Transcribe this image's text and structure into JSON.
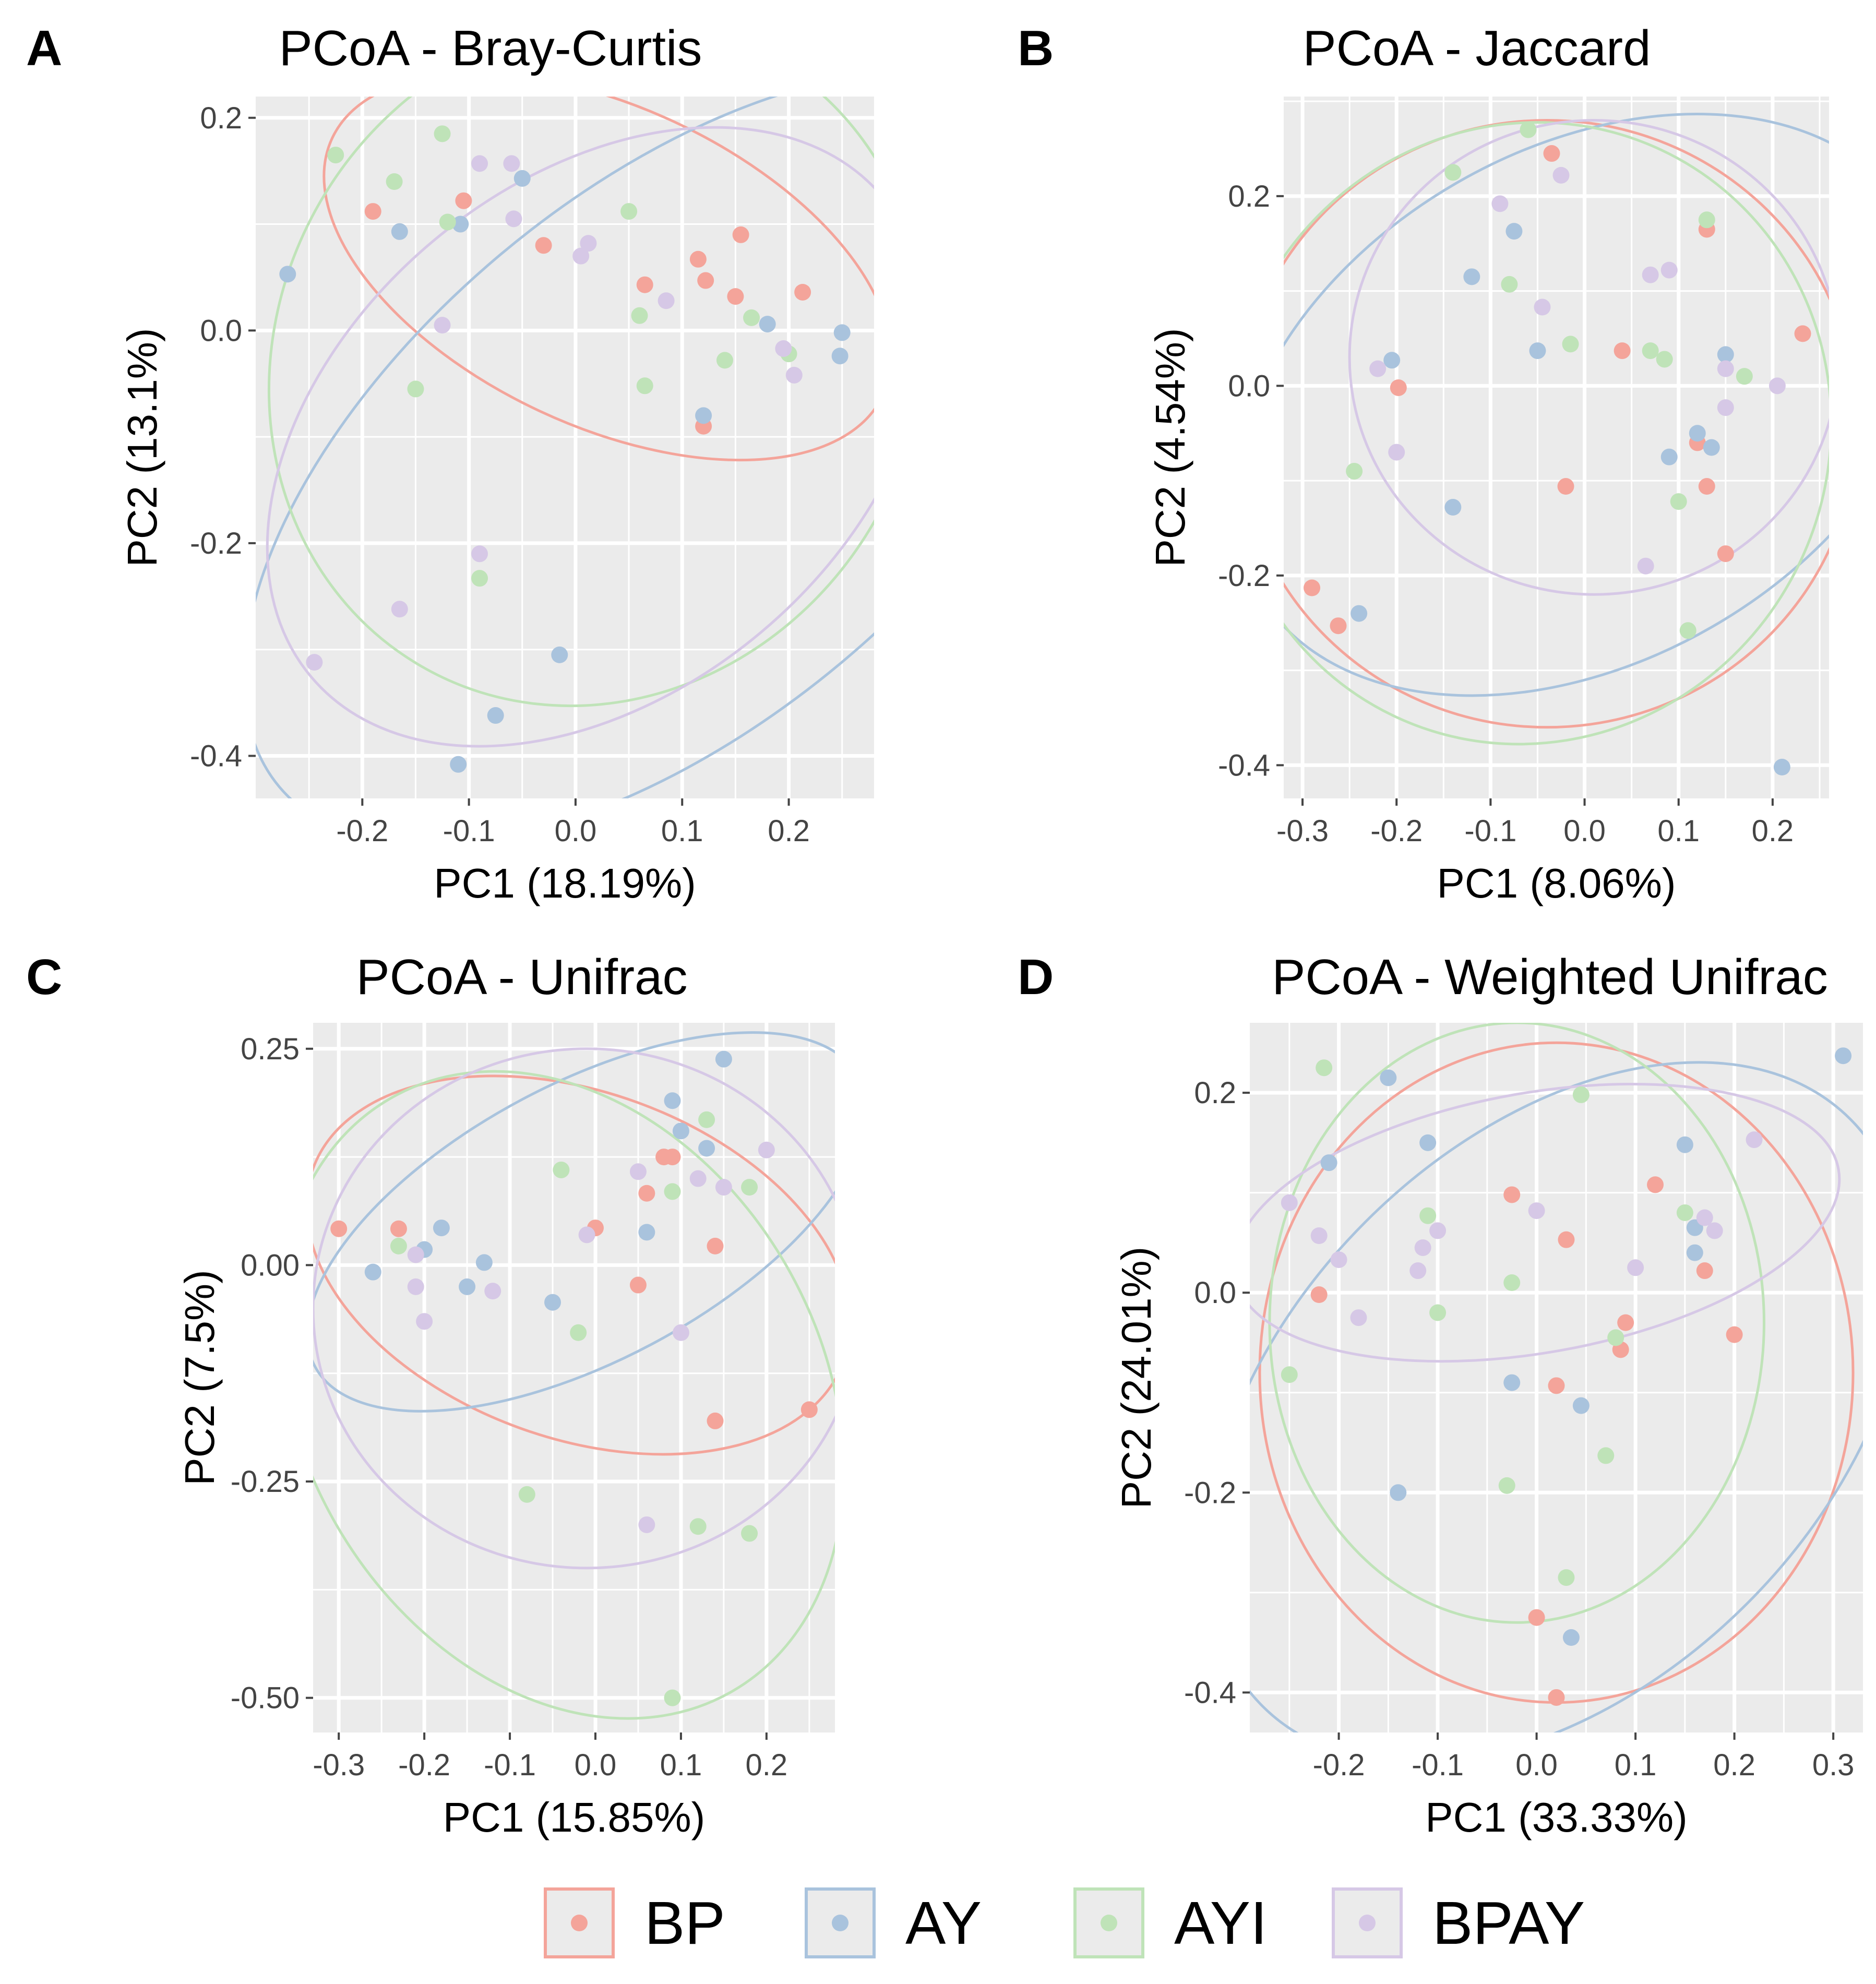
{
  "legend": {
    "items": [
      {
        "label": "BP",
        "color": "#f4a49a"
      },
      {
        "label": "AY",
        "color": "#a9c3dd"
      },
      {
        "label": "AYI",
        "color": "#bfe3b8"
      },
      {
        "label": "BPAY",
        "color": "#d6c8e6"
      }
    ]
  },
  "chart_data": [
    {
      "type": "scatter",
      "panel": "A",
      "title": "PCoA - Bray-Curtis",
      "xlabel": "PC1 (18.19%)",
      "ylabel": "PC2 (13.1%)",
      "xlim": [
        -0.3,
        0.28
      ],
      "ylim": [
        -0.44,
        0.22
      ],
      "xticks": [
        -0.2,
        -0.1,
        0.0,
        0.1,
        0.2
      ],
      "xtick_labels": [
        "-0.2",
        "-0.1",
        "0.0",
        "0.1",
        "0.2"
      ],
      "yticks": [
        -0.4,
        -0.2,
        0.0,
        0.2
      ],
      "ytick_labels": [
        "-0.4",
        "-0.2",
        "0.0",
        "0.2"
      ],
      "grid": true,
      "series": [
        {
          "name": "BP",
          "color": "#f4a49a",
          "points": [
            [
              -0.19,
              0.112
            ],
            [
              -0.105,
              0.122
            ],
            [
              -0.03,
              0.08
            ],
            [
              0.065,
              0.043
            ],
            [
              0.115,
              0.067
            ],
            [
              0.122,
              0.047
            ],
            [
              0.155,
              0.09
            ],
            [
              0.15,
              0.032
            ],
            [
              0.213,
              0.036
            ],
            [
              0.12,
              -0.09
            ]
          ],
          "ellipse": {
            "cx": 0.03,
            "cy": 0.06,
            "rx": 0.285,
            "ry": 0.15,
            "angle_deg": -25
          }
        },
        {
          "name": "AY",
          "color": "#a9c3dd",
          "points": [
            [
              -0.27,
              0.053
            ],
            [
              -0.165,
              0.093
            ],
            [
              -0.108,
              0.1
            ],
            [
              -0.05,
              0.143
            ],
            [
              0.12,
              -0.08
            ],
            [
              0.18,
              0.006
            ],
            [
              0.25,
              -0.002
            ],
            [
              0.248,
              -0.024
            ],
            [
              -0.015,
              -0.305
            ],
            [
              -0.075,
              -0.362
            ],
            [
              -0.11,
              -0.408
            ]
          ],
          "ellipse": {
            "cx": 0.09,
            "cy": -0.12,
            "rx": 0.48,
            "ry": 0.25,
            "angle_deg": 40
          }
        },
        {
          "name": "AYI",
          "color": "#bfe3b8",
          "points": [
            [
              -0.225,
              0.165
            ],
            [
              -0.17,
              0.14
            ],
            [
              -0.125,
              0.185
            ],
            [
              -0.12,
              0.102
            ],
            [
              0.05,
              0.112
            ],
            [
              0.06,
              0.014
            ],
            [
              0.065,
              -0.052
            ],
            [
              0.14,
              -0.028
            ],
            [
              0.165,
              0.012
            ],
            [
              0.2,
              -0.022
            ],
            [
              -0.15,
              -0.055
            ],
            [
              -0.09,
              -0.233
            ]
          ],
          "ellipse": {
            "cx": 0.02,
            "cy": -0.03,
            "rx": 0.3,
            "ry": 0.33,
            "angle_deg": -30
          }
        },
        {
          "name": "BPAY",
          "color": "#d6c8e6",
          "points": [
            [
              -0.09,
              0.157
            ],
            [
              -0.06,
              0.157
            ],
            [
              -0.058,
              0.105
            ],
            [
              0.005,
              0.07
            ],
            [
              0.012,
              0.082
            ],
            [
              0.085,
              0.028
            ],
            [
              0.195,
              -0.017
            ],
            [
              0.205,
              -0.042
            ],
            [
              -0.125,
              0.005
            ],
            [
              -0.09,
              -0.21
            ],
            [
              -0.165,
              -0.262
            ],
            [
              -0.245,
              -0.312
            ]
          ],
          "ellipse": {
            "cx": 0.02,
            "cy": -0.1,
            "rx": 0.35,
            "ry": 0.24,
            "angle_deg": 40
          }
        }
      ]
    },
    {
      "type": "scatter",
      "panel": "B",
      "title": "PCoA - Jaccard",
      "xlabel": "PC1 (8.06%)",
      "ylabel": "PC2 (4.54%)",
      "xlim": [
        -0.32,
        0.26
      ],
      "ylim": [
        -0.435,
        0.305
      ],
      "xticks": [
        -0.3,
        -0.2,
        -0.1,
        0.0,
        0.1,
        0.2
      ],
      "xtick_labels": [
        "-0.3",
        "-0.2",
        "-0.1",
        "0.0",
        "0.1",
        "0.2"
      ],
      "yticks": [
        -0.4,
        -0.2,
        0.0,
        0.2
      ],
      "ytick_labels": [
        "-0.4",
        "-0.2",
        "0.0",
        "0.2"
      ],
      "grid": true,
      "series": [
        {
          "name": "BP",
          "color": "#f4a49a",
          "points": [
            [
              -0.035,
              0.245
            ],
            [
              0.13,
              0.165
            ],
            [
              0.232,
              0.055
            ],
            [
              0.04,
              0.037
            ],
            [
              -0.198,
              -0.002
            ],
            [
              -0.02,
              -0.106
            ],
            [
              0.12,
              -0.06
            ],
            [
              0.13,
              -0.106
            ],
            [
              0.15,
              -0.177
            ],
            [
              -0.29,
              -0.213
            ],
            [
              -0.262,
              -0.253
            ]
          ],
          "ellipse": {
            "cx": -0.04,
            "cy": -0.04,
            "rx": 0.33,
            "ry": 0.32,
            "angle_deg": 0
          }
        },
        {
          "name": "AY",
          "color": "#a9c3dd",
          "points": [
            [
              -0.075,
              0.163
            ],
            [
              -0.12,
              0.115
            ],
            [
              -0.05,
              0.037
            ],
            [
              -0.205,
              0.027
            ],
            [
              0.12,
              -0.05
            ],
            [
              0.15,
              0.033
            ],
            [
              0.09,
              -0.075
            ],
            [
              0.135,
              -0.065
            ],
            [
              -0.14,
              -0.128
            ],
            [
              -0.24,
              -0.24
            ],
            [
              0.21,
              -0.402
            ]
          ],
          "ellipse": {
            "cx": 0.0,
            "cy": -0.02,
            "rx": 0.4,
            "ry": 0.27,
            "angle_deg": 30
          }
        },
        {
          "name": "AYI",
          "color": "#bfe3b8",
          "points": [
            [
              -0.06,
              0.27
            ],
            [
              -0.14,
              0.225
            ],
            [
              -0.08,
              0.107
            ],
            [
              -0.015,
              0.044
            ],
            [
              0.07,
              0.037
            ],
            [
              0.085,
              0.028
            ],
            [
              0.13,
              0.175
            ],
            [
              0.17,
              0.01
            ],
            [
              -0.245,
              -0.09
            ],
            [
              0.1,
              -0.122
            ],
            [
              0.11,
              -0.258
            ]
          ],
          "ellipse": {
            "cx": -0.06,
            "cy": -0.05,
            "rx": 0.32,
            "ry": 0.33,
            "angle_deg": -25
          }
        },
        {
          "name": "BPAY",
          "color": "#d6c8e6",
          "points": [
            [
              -0.025,
              0.222
            ],
            [
              -0.09,
              0.192
            ],
            [
              -0.045,
              0.083
            ],
            [
              0.07,
              0.117
            ],
            [
              0.09,
              0.122
            ],
            [
              0.15,
              0.018
            ],
            [
              0.15,
              -0.023
            ],
            [
              0.205,
              0.0
            ],
            [
              -0.22,
              0.018
            ],
            [
              -0.2,
              -0.07
            ],
            [
              0.065,
              -0.19
            ]
          ],
          "ellipse": {
            "cx": 0.01,
            "cy": 0.03,
            "rx": 0.26,
            "ry": 0.25,
            "angle_deg": 0
          }
        }
      ]
    },
    {
      "type": "scatter",
      "panel": "C",
      "title": "PCoA - Unifrac",
      "xlabel": "PC1 (15.85%)",
      "ylabel": "PC2 (7.5%)",
      "xlim": [
        -0.33,
        0.28
      ],
      "ylim": [
        -0.54,
        0.28
      ],
      "xticks": [
        -0.3,
        -0.2,
        -0.1,
        0.0,
        0.1,
        0.2
      ],
      "xtick_labels": [
        "-0.3",
        "-0.2",
        "-0.1",
        "0.0",
        "0.1",
        "0.2"
      ],
      "yticks": [
        -0.5,
        -0.25,
        0.0,
        0.25
      ],
      "ytick_labels": [
        "-0.50",
        "-0.25",
        "0.00",
        "0.25"
      ],
      "grid": true,
      "series": [
        {
          "name": "BP",
          "color": "#f4a49a",
          "points": [
            [
              -0.3,
              0.042
            ],
            [
              -0.23,
              0.042
            ],
            [
              0.0,
              0.043
            ],
            [
              0.06,
              0.083
            ],
            [
              0.08,
              0.125
            ],
            [
              0.09,
              0.125
            ],
            [
              0.05,
              -0.023
            ],
            [
              0.14,
              0.022
            ],
            [
              0.14,
              -0.18
            ],
            [
              0.25,
              -0.167
            ]
          ],
          "ellipse": {
            "cx": -0.02,
            "cy": 0.0,
            "rx": 0.33,
            "ry": 0.2,
            "angle_deg": -20
          }
        },
        {
          "name": "AY",
          "color": "#a9c3dd",
          "points": [
            [
              -0.26,
              -0.008
            ],
            [
              -0.2,
              0.018
            ],
            [
              -0.18,
              0.043
            ],
            [
              -0.15,
              -0.025
            ],
            [
              -0.13,
              0.003
            ],
            [
              -0.05,
              -0.043
            ],
            [
              0.06,
              0.038
            ],
            [
              0.09,
              0.19
            ],
            [
              0.1,
              0.155
            ],
            [
              0.13,
              0.135
            ],
            [
              0.15,
              0.238
            ]
          ],
          "ellipse": {
            "cx": -0.01,
            "cy": 0.05,
            "rx": 0.36,
            "ry": 0.16,
            "angle_deg": 28
          }
        },
        {
          "name": "AYI",
          "color": "#bfe3b8",
          "points": [
            [
              -0.23,
              0.022
            ],
            [
              -0.04,
              0.11
            ],
            [
              -0.02,
              -0.078
            ],
            [
              0.09,
              0.085
            ],
            [
              0.13,
              0.168
            ],
            [
              0.18,
              0.09
            ],
            [
              -0.08,
              -0.265
            ],
            [
              0.12,
              -0.302
            ],
            [
              0.18,
              -0.31
            ],
            [
              0.09,
              -0.5
            ]
          ],
          "ellipse": {
            "cx": -0.04,
            "cy": -0.15,
            "rx": 0.4,
            "ry": 0.3,
            "angle_deg": -60
          }
        },
        {
          "name": "BPAY",
          "color": "#d6c8e6",
          "points": [
            [
              -0.21,
              0.012
            ],
            [
              -0.21,
              -0.025
            ],
            [
              -0.2,
              -0.065
            ],
            [
              -0.12,
              -0.03
            ],
            [
              -0.01,
              0.035
            ],
            [
              0.05,
              0.108
            ],
            [
              0.12,
              0.1
            ],
            [
              0.15,
              0.09
            ],
            [
              0.2,
              0.133
            ],
            [
              0.1,
              -0.078
            ],
            [
              0.06,
              -0.3
            ]
          ],
          "ellipse": {
            "cx": -0.01,
            "cy": -0.05,
            "rx": 0.32,
            "ry": 0.3,
            "angle_deg": 0
          }
        }
      ]
    },
    {
      "type": "scatter",
      "panel": "D",
      "title": "PCoA - Weighted Unifrac",
      "xlabel": "PC1 (33.33%)",
      "ylabel": "PC2 (24.01%)",
      "xlim": [
        -0.29,
        0.33
      ],
      "ylim": [
        -0.44,
        0.27
      ],
      "xticks": [
        -0.2,
        -0.1,
        0.0,
        0.1,
        0.2,
        0.3
      ],
      "xtick_labels": [
        "-0.2",
        "-0.1",
        "0.0",
        "0.1",
        "0.2",
        "0.3"
      ],
      "yticks": [
        -0.4,
        -0.2,
        0.0,
        0.2
      ],
      "ytick_labels": [
        "-0.4",
        "-0.2",
        "0.0",
        "0.2"
      ],
      "grid": true,
      "series": [
        {
          "name": "BP",
          "color": "#f4a49a",
          "points": [
            [
              -0.025,
              0.098
            ],
            [
              0.03,
              0.053
            ],
            [
              0.12,
              0.108
            ],
            [
              0.17,
              0.022
            ],
            [
              0.2,
              -0.042
            ],
            [
              0.09,
              -0.03
            ],
            [
              0.085,
              -0.057
            ],
            [
              0.02,
              -0.093
            ],
            [
              -0.22,
              -0.002
            ],
            [
              0.0,
              -0.325
            ],
            [
              0.02,
              -0.405
            ]
          ],
          "ellipse": {
            "cx": 0.02,
            "cy": -0.08,
            "rx": 0.3,
            "ry": 0.33,
            "angle_deg": 0
          }
        },
        {
          "name": "AY",
          "color": "#a9c3dd",
          "points": [
            [
              -0.21,
              0.13
            ],
            [
              -0.15,
              0.215
            ],
            [
              -0.11,
              0.15
            ],
            [
              0.15,
              0.148
            ],
            [
              0.16,
              0.065
            ],
            [
              0.16,
              0.04
            ],
            [
              0.31,
              0.237
            ],
            [
              -0.025,
              -0.09
            ],
            [
              0.045,
              -0.113
            ],
            [
              -0.14,
              -0.2
            ],
            [
              0.035,
              -0.345
            ]
          ],
          "ellipse": {
            "cx": 0.02,
            "cy": -0.12,
            "rx": 0.42,
            "ry": 0.27,
            "angle_deg": 45
          }
        },
        {
          "name": "AYI",
          "color": "#bfe3b8",
          "points": [
            [
              -0.215,
              0.225
            ],
            [
              -0.11,
              0.077
            ],
            [
              -0.1,
              -0.02
            ],
            [
              -0.025,
              0.01
            ],
            [
              0.045,
              0.198
            ],
            [
              0.15,
              0.08
            ],
            [
              0.08,
              -0.045
            ],
            [
              0.07,
              -0.163
            ],
            [
              -0.03,
              -0.193
            ],
            [
              0.03,
              -0.285
            ],
            [
              -0.25,
              -0.082
            ]
          ],
          "ellipse": {
            "cx": -0.02,
            "cy": -0.03,
            "rx": 0.25,
            "ry": 0.3,
            "angle_deg": 0
          }
        },
        {
          "name": "BPAY",
          "color": "#d6c8e6",
          "points": [
            [
              -0.25,
              0.09
            ],
            [
              -0.22,
              0.057
            ],
            [
              -0.2,
              0.033
            ],
            [
              -0.18,
              -0.025
            ],
            [
              -0.1,
              0.062
            ],
            [
              -0.115,
              0.045
            ],
            [
              -0.12,
              0.022
            ],
            [
              0.0,
              0.082
            ],
            [
              0.1,
              0.025
            ],
            [
              0.17,
              0.075
            ],
            [
              0.18,
              0.062
            ],
            [
              0.22,
              0.153
            ]
          ],
          "ellipse": {
            "cx": 0.0,
            "cy": 0.07,
            "rx": 0.31,
            "ry": 0.13,
            "angle_deg": 10
          }
        }
      ]
    }
  ]
}
